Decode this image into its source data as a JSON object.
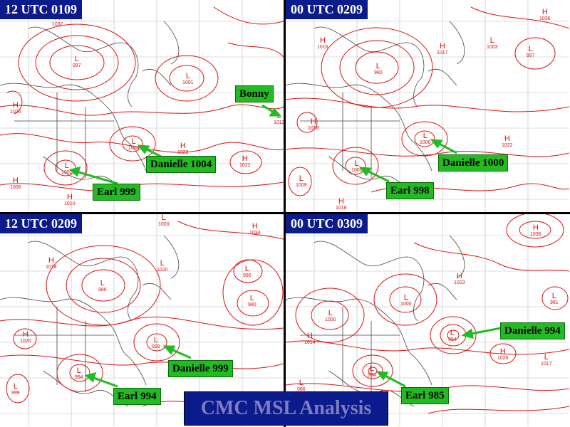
{
  "title": "CMC MSL Analysis",
  "colors": {
    "isobar": "#dd1111",
    "label_bg": "#22bb22",
    "title_bg": "#0b1b8c",
    "arrow": "#22bb22"
  },
  "panels": [
    {
      "time": "12 UTC 0109",
      "labels": [
        "Danielle 1004",
        "Earl 999",
        "Bonny"
      ],
      "systems": [
        {
          "type": "H",
          "value": "1032"
        },
        {
          "type": "L",
          "value": "997"
        },
        {
          "type": "L",
          "value": "1001"
        },
        {
          "type": "H",
          "value": "1026"
        },
        {
          "type": "L",
          "value": "1004"
        },
        {
          "type": "H",
          "value": "1022"
        },
        {
          "type": "H",
          "value": "1022"
        },
        {
          "type": "L",
          "value": "1002"
        },
        {
          "type": "H",
          "value": "1008"
        },
        {
          "type": "H",
          "value": "1010"
        },
        {
          "type": "L",
          "value": "1012"
        }
      ]
    },
    {
      "time": "00 UTC 0209",
      "labels": [
        "Danielle 1000",
        "Earl 998"
      ],
      "systems": [
        {
          "type": "H",
          "value": "1036"
        },
        {
          "type": "H",
          "value": "1016"
        },
        {
          "type": "H",
          "value": "1017"
        },
        {
          "type": "L",
          "value": "980"
        },
        {
          "type": "L",
          "value": "1003"
        },
        {
          "type": "L",
          "value": "997"
        },
        {
          "type": "H",
          "value": "1036"
        },
        {
          "type": "H",
          "value": "1018"
        },
        {
          "type": "L",
          "value": "1000"
        },
        {
          "type": "H",
          "value": "1022"
        },
        {
          "type": "L",
          "value": "1000"
        },
        {
          "type": "L",
          "value": "1009"
        },
        {
          "type": "H",
          "value": "1018"
        }
      ]
    },
    {
      "time": "12 UTC 0209",
      "labels": [
        "Danielle 999",
        "Earl 994"
      ],
      "systems": [
        {
          "type": "L",
          "value": "1000"
        },
        {
          "type": "H",
          "value": "1034"
        },
        {
          "type": "H",
          "value": "1018"
        },
        {
          "type": "L",
          "value": "986"
        },
        {
          "type": "L",
          "value": "1020"
        },
        {
          "type": "L",
          "value": "990"
        },
        {
          "type": "L",
          "value": "980"
        },
        {
          "type": "H",
          "value": "1020"
        },
        {
          "type": "L",
          "value": "999"
        },
        {
          "type": "L",
          "value": "994"
        },
        {
          "type": "L",
          "value": "999"
        }
      ]
    },
    {
      "time": "00 UTC 0309",
      "labels": [
        "Danielle 994",
        "Earl 985"
      ],
      "systems": [
        {
          "type": "H",
          "value": "1036"
        },
        {
          "type": "H",
          "value": "1023"
        },
        {
          "type": "L",
          "value": "1000"
        },
        {
          "type": "L",
          "value": "1000"
        },
        {
          "type": "L",
          "value": "981"
        },
        {
          "type": "H",
          "value": "1014"
        },
        {
          "type": "L",
          "value": "994"
        },
        {
          "type": "H",
          "value": "1026"
        },
        {
          "type": "L",
          "value": "1017"
        },
        {
          "type": "L",
          "value": "984"
        },
        {
          "type": "L",
          "value": "986"
        }
      ]
    }
  ]
}
